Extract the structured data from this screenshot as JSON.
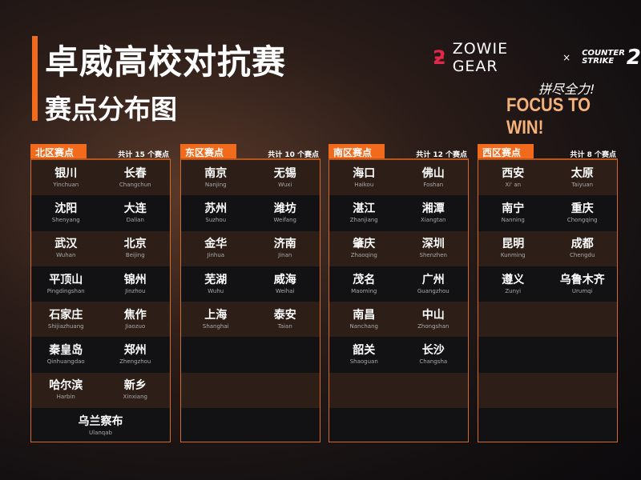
{
  "header": {
    "title": "卓威高校对抗赛",
    "subtitle": "赛点分布图"
  },
  "brand": {
    "zowie": "ZOWIE GEAR",
    "times": "×",
    "cs_line1": "COUNTER",
    "cs_line2": "STRIKE",
    "cs_num": "2",
    "slogan_cn": "拼尽全力!",
    "slogan_en": "FOCUS TO WIN!",
    "accent": "#f26a1b",
    "zowie_red": "#e0284a"
  },
  "regions": [
    {
      "name": "北区赛点",
      "count": "共计 15 个赛点",
      "cities": [
        [
          "银川",
          "Yinchuan"
        ],
        [
          "长春",
          "Changchun"
        ],
        [
          "沈阳",
          "Shenyang"
        ],
        [
          "大连",
          "Dalian"
        ],
        [
          "武汉",
          "Wuhan"
        ],
        [
          "北京",
          "Beijing"
        ],
        [
          "平顶山",
          "Pingdingshan"
        ],
        [
          "锦州",
          "Jinzhou"
        ],
        [
          "石家庄",
          "Shijiazhuang"
        ],
        [
          "焦作",
          "Jiaozuo"
        ],
        [
          "秦皇岛",
          "Qinhuangdao"
        ],
        [
          "郑州",
          "Zhengzhou"
        ],
        [
          "哈尔滨",
          "Harbin"
        ],
        [
          "新乡",
          "Xinxiang"
        ],
        [
          "乌兰察布",
          "Ulanqab"
        ]
      ]
    },
    {
      "name": "东区赛点",
      "count": "共计 10 个赛点",
      "cities": [
        [
          "南京",
          "Nanjing"
        ],
        [
          "无锡",
          "Wuxi"
        ],
        [
          "苏州",
          "Suzhou"
        ],
        [
          "潍坊",
          "Weifang"
        ],
        [
          "金华",
          "Jinhua"
        ],
        [
          "济南",
          "Jinan"
        ],
        [
          "芜湖",
          "Wuhu"
        ],
        [
          "威海",
          "Weihai"
        ],
        [
          "上海",
          "Shanghai"
        ],
        [
          "泰安",
          "Taian"
        ]
      ]
    },
    {
      "name": "南区赛点",
      "count": "共计 12 个赛点",
      "cities": [
        [
          "海口",
          "Haikou"
        ],
        [
          "佛山",
          "Foshan"
        ],
        [
          "湛江",
          "Zhanjiang"
        ],
        [
          "湘潭",
          "Xiangtan"
        ],
        [
          "肇庆",
          "Zhaoqing"
        ],
        [
          "深圳",
          "Shenzhen"
        ],
        [
          "茂名",
          "Maoming"
        ],
        [
          "广州",
          "Guangzhou"
        ],
        [
          "南昌",
          "Nanchang"
        ],
        [
          "中山",
          "Zhongshan"
        ],
        [
          "韶关",
          "Shaoguan"
        ],
        [
          "长沙",
          "Changsha"
        ]
      ]
    },
    {
      "name": "西区赛点",
      "count": "共计 8 个赛点",
      "cities": [
        [
          "西安",
          "Xi' an"
        ],
        [
          "太原",
          "Taiyuan"
        ],
        [
          "南宁",
          "Nanning"
        ],
        [
          "重庆",
          "Chongqing"
        ],
        [
          "昆明",
          "Kunming"
        ],
        [
          "成都",
          "Chengdu"
        ],
        [
          "遵义",
          "Zunyi"
        ],
        [
          "乌鲁木齐",
          "Urumqi"
        ]
      ]
    }
  ]
}
